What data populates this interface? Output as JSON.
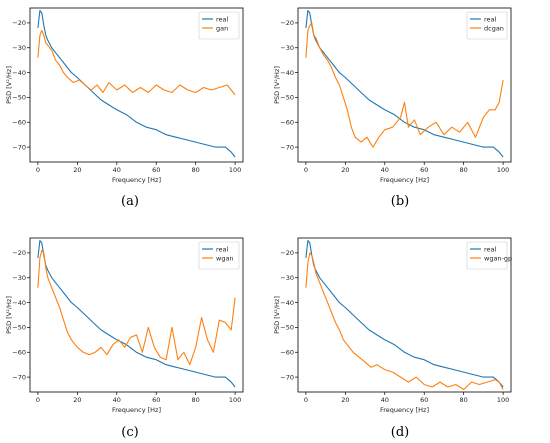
{
  "chart_data": [
    {
      "type": "line",
      "caption": "(a)",
      "xlabel": "Frequency [Hz]",
      "ylabel": "PSD [V²/Hz]",
      "xlim": [
        -4,
        104
      ],
      "ylim": [
        -76,
        -14
      ],
      "xticks": [
        0,
        20,
        40,
        60,
        80,
        100
      ],
      "yticks": [
        -20,
        -30,
        -40,
        -50,
        -60,
        -70
      ],
      "legend_position": "top-right",
      "grid": false,
      "series": [
        {
          "name": "real",
          "color": "#1f77b4",
          "x": [
            0,
            1,
            2,
            3,
            4,
            5,
            7,
            9,
            11,
            14,
            17,
            20,
            24,
            28,
            32,
            36,
            40,
            45,
            50,
            55,
            60,
            65,
            70,
            75,
            80,
            85,
            90,
            95,
            98,
            100
          ],
          "y": [
            -22,
            -15,
            -16,
            -21,
            -25,
            -27,
            -30,
            -32,
            -34,
            -37,
            -40,
            -42,
            -45,
            -48,
            -51,
            -53,
            -55,
            -57,
            -60,
            -62,
            -63,
            -65,
            -66,
            -67,
            -68,
            -69,
            -70,
            -70,
            -72,
            -74
          ]
        },
        {
          "name": "gan",
          "color": "#ff7f0e",
          "x": [
            0,
            1,
            2,
            3,
            4,
            5,
            7,
            9,
            11,
            13,
            15,
            18,
            21,
            24,
            27,
            30,
            33,
            36,
            40,
            44,
            48,
            52,
            56,
            60,
            64,
            68,
            72,
            76,
            80,
            84,
            88,
            92,
            96,
            100
          ],
          "y": [
            -34,
            -25,
            -23,
            -25,
            -28,
            -29,
            -31,
            -35,
            -37,
            -40,
            -42,
            -44,
            -43,
            -45,
            -47,
            -45,
            -48,
            -44,
            -47,
            -45,
            -48,
            -46,
            -48,
            -45,
            -47,
            -48,
            -45,
            -47,
            -48,
            -46,
            -47,
            -46,
            -45,
            -49
          ]
        }
      ]
    },
    {
      "type": "line",
      "caption": "(b)",
      "xlabel": "Frequency [Hz]",
      "ylabel": "PSD [V²/Hz]",
      "xlim": [
        -4,
        104
      ],
      "ylim": [
        -76,
        -14
      ],
      "xticks": [
        0,
        20,
        40,
        60,
        80,
        100
      ],
      "yticks": [
        -20,
        -30,
        -40,
        -50,
        -60,
        -70
      ],
      "legend_position": "top-right",
      "grid": false,
      "series": [
        {
          "name": "real",
          "color": "#1f77b4",
          "x": [
            0,
            1,
            2,
            3,
            4,
            5,
            7,
            9,
            11,
            14,
            17,
            20,
            24,
            28,
            32,
            36,
            40,
            45,
            50,
            55,
            60,
            65,
            70,
            75,
            80,
            85,
            90,
            95,
            98,
            100
          ],
          "y": [
            -22,
            -15,
            -16,
            -21,
            -25,
            -27,
            -30,
            -32,
            -34,
            -37,
            -40,
            -42,
            -45,
            -48,
            -51,
            -53,
            -55,
            -57,
            -60,
            -62,
            -63,
            -65,
            -66,
            -67,
            -68,
            -69,
            -70,
            -70,
            -72,
            -74
          ]
        },
        {
          "name": "dcgan",
          "color": "#ff7f0e",
          "x": [
            0,
            1,
            2,
            3,
            4,
            5,
            7,
            9,
            11,
            13,
            15,
            17,
            19,
            21,
            23,
            25,
            28,
            31,
            34,
            37,
            40,
            44,
            48,
            50,
            52,
            55,
            58,
            62,
            66,
            70,
            74,
            78,
            82,
            86,
            90,
            93,
            96,
            98,
            100
          ],
          "y": [
            -34,
            -23,
            -21,
            -20,
            -25,
            -26,
            -30,
            -33,
            -35,
            -38,
            -42,
            -45,
            -50,
            -55,
            -62,
            -66,
            -68,
            -66,
            -70,
            -66,
            -63,
            -62,
            -58,
            -52,
            -62,
            -59,
            -65,
            -62,
            -60,
            -65,
            -62,
            -64,
            -60,
            -66,
            -58,
            -55,
            -55,
            -52,
            -43
          ]
        }
      ]
    },
    {
      "type": "line",
      "caption": "(c)",
      "xlabel": "Frequency [Hz]",
      "ylabel": "PSD [V²/Hz]",
      "xlim": [
        -4,
        104
      ],
      "ylim": [
        -76,
        -14
      ],
      "xticks": [
        0,
        20,
        40,
        60,
        80,
        100
      ],
      "yticks": [
        -20,
        -30,
        -40,
        -50,
        -60,
        -70
      ],
      "legend_position": "top-right",
      "grid": false,
      "series": [
        {
          "name": "real",
          "color": "#1f77b4",
          "x": [
            0,
            1,
            2,
            3,
            4,
            5,
            7,
            9,
            11,
            14,
            17,
            20,
            24,
            28,
            32,
            36,
            40,
            45,
            50,
            55,
            60,
            65,
            70,
            75,
            80,
            85,
            90,
            95,
            98,
            100
          ],
          "y": [
            -22,
            -15,
            -16,
            -21,
            -25,
            -27,
            -30,
            -32,
            -34,
            -37,
            -40,
            -42,
            -45,
            -48,
            -51,
            -53,
            -55,
            -57,
            -60,
            -62,
            -63,
            -65,
            -66,
            -67,
            -68,
            -69,
            -70,
            -70,
            -72,
            -74
          ]
        },
        {
          "name": "wgan",
          "color": "#ff7f0e",
          "x": [
            0,
            1,
            2,
            3,
            4,
            5,
            7,
            9,
            11,
            13,
            15,
            17,
            20,
            23,
            26,
            29,
            32,
            35,
            38,
            41,
            44,
            47,
            50,
            53,
            56,
            59,
            62,
            65,
            68,
            71,
            74,
            77,
            80,
            83,
            86,
            89,
            92,
            95,
            98,
            100
          ],
          "y": [
            -34,
            -22,
            -19,
            -20,
            -26,
            -30,
            -34,
            -38,
            -42,
            -47,
            -52,
            -55,
            -58,
            -60,
            -61,
            -60,
            -58,
            -61,
            -57,
            -55,
            -58,
            -54,
            -53,
            -60,
            -50,
            -58,
            -62,
            -63,
            -50,
            -63,
            -60,
            -65,
            -58,
            -46,
            -55,
            -60,
            -47,
            -48,
            -51,
            -38
          ]
        }
      ]
    },
    {
      "type": "line",
      "caption": "(d)",
      "xlabel": "Frequency [Hz]",
      "ylabel": "PSD [V²/Hz]",
      "xlim": [
        -4,
        104
      ],
      "ylim": [
        -76,
        -14
      ],
      "xticks": [
        0,
        20,
        40,
        60,
        80,
        100
      ],
      "yticks": [
        -20,
        -30,
        -40,
        -50,
        -60,
        -70
      ],
      "legend_position": "top-right",
      "grid": false,
      "series": [
        {
          "name": "real",
          "color": "#1f77b4",
          "x": [
            0,
            1,
            2,
            3,
            4,
            5,
            7,
            9,
            11,
            14,
            17,
            20,
            24,
            28,
            32,
            36,
            40,
            45,
            50,
            55,
            60,
            65,
            70,
            75,
            80,
            85,
            90,
            95,
            98,
            100
          ],
          "y": [
            -22,
            -15,
            -16,
            -21,
            -25,
            -27,
            -30,
            -32,
            -34,
            -37,
            -40,
            -42,
            -45,
            -48,
            -51,
            -53,
            -55,
            -57,
            -60,
            -62,
            -63,
            -65,
            -66,
            -67,
            -68,
            -69,
            -70,
            -70,
            -72,
            -74
          ]
        },
        {
          "name": "wgan-gp",
          "color": "#ff7f0e",
          "x": [
            0,
            1,
            2,
            3,
            4,
            5,
            7,
            9,
            11,
            13,
            15,
            17,
            19,
            21,
            24,
            27,
            30,
            33,
            36,
            40,
            44,
            48,
            52,
            56,
            60,
            64,
            68,
            72,
            76,
            80,
            84,
            88,
            92,
            96,
            98,
            100
          ],
          "y": [
            -34,
            -24,
            -20,
            -21,
            -24,
            -28,
            -32,
            -36,
            -40,
            -44,
            -48,
            -51,
            -55,
            -57,
            -60,
            -62,
            -64,
            -66,
            -65,
            -67,
            -68,
            -70,
            -72,
            -70,
            -73,
            -74,
            -72,
            -74,
            -73,
            -75,
            -72,
            -73,
            -72,
            -71,
            -72,
            -75
          ]
        }
      ]
    }
  ]
}
